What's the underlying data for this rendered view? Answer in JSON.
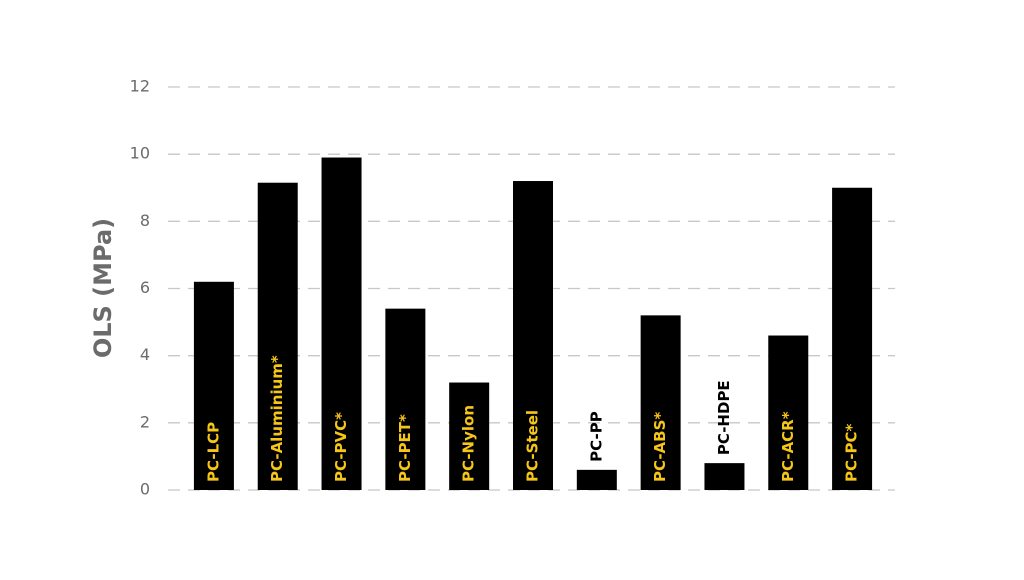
{
  "chart_data": {
    "type": "bar",
    "y_label": "OLS (MPa)",
    "categories": [
      "PC-LCP",
      "PC-Aluminium*",
      "PC-PVC*",
      "PC-PET*",
      "PC-Nylon",
      "PC-Steel",
      "PC-PP",
      "PC-ABS*",
      "PC-HDPE",
      "PC-ACR*",
      "PC-PC*"
    ],
    "values": [
      6.2,
      9.15,
      9.9,
      5.4,
      3.2,
      9.2,
      0.6,
      5.2,
      0.8,
      4.6,
      9.0
    ],
    "color": "#000000",
    "label_color": "#f5c518",
    "ylim": [
      0,
      12
    ],
    "yticks": [
      0,
      2,
      4,
      6,
      8,
      10,
      12
    ],
    "grid": true
  }
}
